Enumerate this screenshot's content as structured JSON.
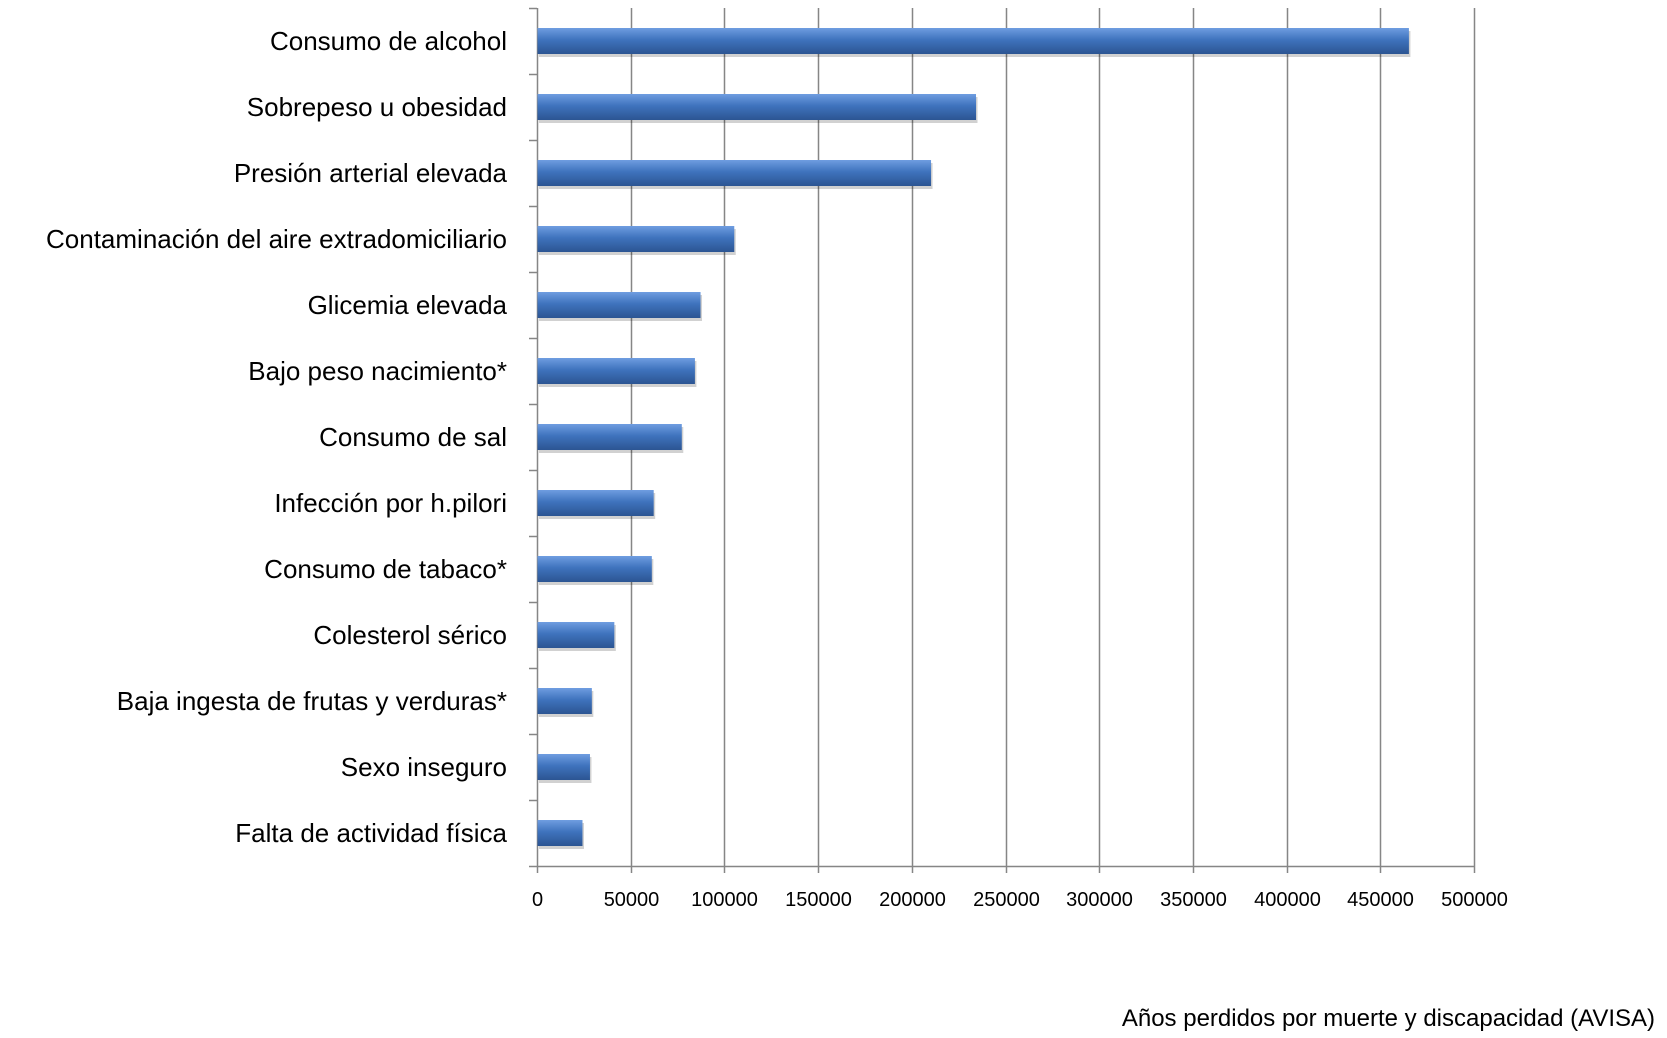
{
  "chart_data": {
    "type": "bar",
    "orientation": "horizontal",
    "categories": [
      "Consumo de alcohol",
      "Sobrepeso u obesidad",
      "Presión arterial elevada",
      "Contaminación del aire extradomiciliario",
      "Glicemia elevada",
      "Bajo peso nacimiento*",
      "Consumo de sal",
      "Infección por h.pilori",
      "Consumo de tabaco*",
      "Colesterol sérico",
      "Baja ingesta de frutas y verduras*",
      "Sexo inseguro",
      "Falta de actividad física"
    ],
    "values": [
      465000,
      234000,
      210000,
      105000,
      87000,
      84000,
      77000,
      62000,
      61000,
      41000,
      29000,
      28000,
      24000
    ],
    "xlabel": "Años perdidos por muerte y discapacidad (AVISA)",
    "ylabel": "",
    "title": "",
    "xlim": [
      0,
      500000
    ],
    "xticks": [
      "0",
      "50000",
      "100000",
      "150000",
      "200000",
      "250000",
      "300000",
      "350000",
      "400000",
      "450000",
      "500000"
    ],
    "grid": "vertical",
    "legend": "none",
    "colors": {
      "bar": "#3f73bd",
      "bar_light": "#6f9de0",
      "bar_dark": "#2c5592",
      "grid": "#868686",
      "axis": "#868686"
    }
  }
}
